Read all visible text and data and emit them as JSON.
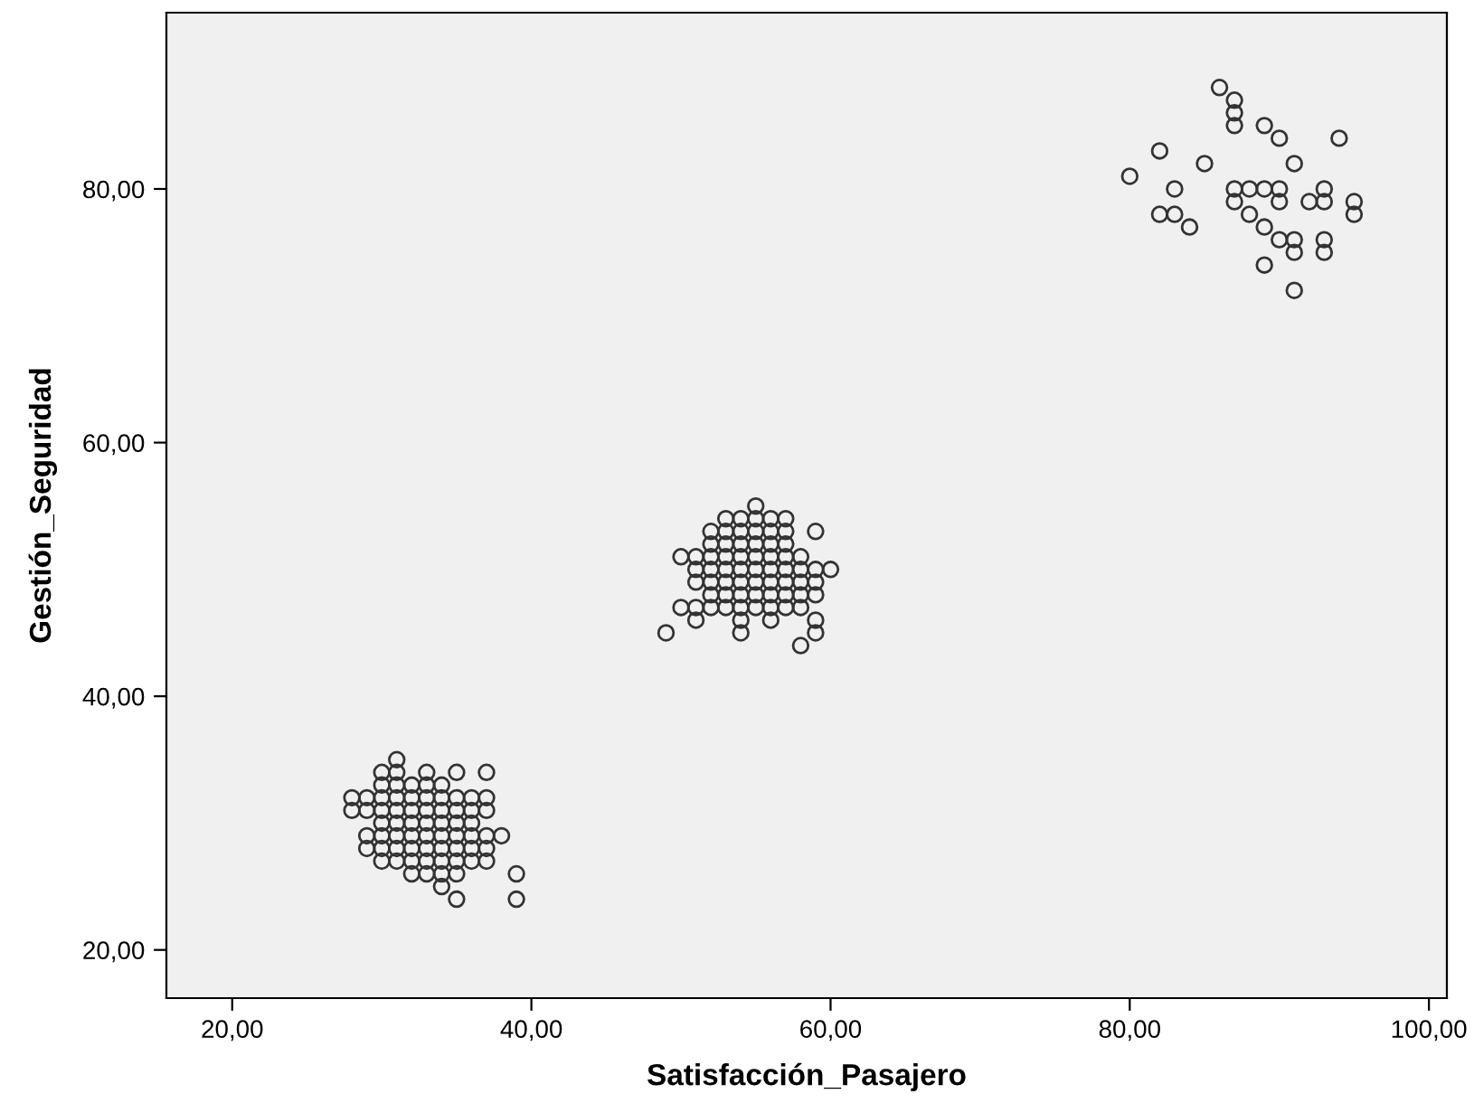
{
  "chart_data": {
    "type": "scatter",
    "xlabel": "Satisfacción_Pasajero",
    "ylabel": "Gestión_Seguridad",
    "xlim": [
      15.6,
      101.2
    ],
    "ylim": [
      16.2,
      93.9
    ],
    "xticks": [
      {
        "value": 20,
        "label": "20,00"
      },
      {
        "value": 40,
        "label": "40,00"
      },
      {
        "value": 60,
        "label": "60,00"
      },
      {
        "value": 80,
        "label": "80,00"
      },
      {
        "value": 100,
        "label": "100,00"
      }
    ],
    "yticks": [
      {
        "value": 20,
        "label": "20,00"
      },
      {
        "value": 40,
        "label": "40,00"
      },
      {
        "value": 60,
        "label": "60,00"
      },
      {
        "value": 80,
        "label": "80,00"
      }
    ],
    "marker": "circle",
    "grid": false,
    "legend": false,
    "series": [
      {
        "color": "#333333",
        "x": [
          31,
          30,
          31,
          33,
          35,
          37,
          30,
          31,
          32,
          33,
          34,
          28,
          29,
          30,
          31,
          32,
          33,
          34,
          35,
          36,
          37,
          28,
          29,
          30,
          31,
          32,
          33,
          34,
          35,
          36,
          37,
          30,
          31,
          32,
          33,
          34,
          35,
          36,
          29,
          30,
          31,
          32,
          33,
          34,
          35,
          36,
          37,
          38,
          29,
          30,
          31,
          32,
          33,
          34,
          35,
          36,
          37,
          30,
          31,
          32,
          33,
          34,
          35,
          36,
          37,
          32,
          33,
          34,
          35,
          39,
          34,
          35,
          39,
          55,
          53,
          54,
          55,
          56,
          57,
          52,
          53,
          54,
          55,
          56,
          57,
          59,
          52,
          53,
          54,
          55,
          56,
          57,
          50,
          51,
          52,
          53,
          54,
          55,
          56,
          57,
          58,
          51,
          52,
          53,
          54,
          55,
          56,
          57,
          58,
          59,
          60,
          51,
          52,
          53,
          54,
          55,
          56,
          57,
          58,
          59,
          52,
          53,
          54,
          55,
          56,
          57,
          58,
          59,
          50,
          51,
          52,
          53,
          54,
          55,
          56,
          57,
          58,
          51,
          54,
          56,
          59,
          49,
          54,
          59,
          58,
          86,
          87,
          87,
          87,
          89,
          90,
          94,
          82,
          85,
          91,
          80,
          83,
          87,
          88,
          89,
          90,
          87,
          90,
          92,
          93,
          93,
          95,
          95,
          82,
          83,
          84,
          88,
          89,
          90,
          91,
          91,
          93,
          93,
          89,
          91
        ],
        "values": [
          35,
          34,
          34,
          34,
          34,
          34,
          33,
          33,
          33,
          33,
          33,
          32,
          32,
          32,
          32,
          32,
          32,
          32,
          32,
          32,
          32,
          31,
          31,
          31,
          31,
          31,
          31,
          31,
          31,
          31,
          31,
          30,
          30,
          30,
          30,
          30,
          30,
          30,
          29,
          29,
          29,
          29,
          29,
          29,
          29,
          29,
          29,
          29,
          28,
          28,
          28,
          28,
          28,
          28,
          28,
          28,
          28,
          27,
          27,
          27,
          27,
          27,
          27,
          27,
          27,
          26,
          26,
          26,
          26,
          26,
          25,
          24,
          24,
          55,
          54,
          54,
          54,
          54,
          54,
          53,
          53,
          53,
          53,
          53,
          53,
          53,
          52,
          52,
          52,
          52,
          52,
          52,
          51,
          51,
          51,
          51,
          51,
          51,
          51,
          51,
          51,
          50,
          50,
          50,
          50,
          50,
          50,
          50,
          50,
          50,
          50,
          49,
          49,
          49,
          49,
          49,
          49,
          49,
          49,
          49,
          48,
          48,
          48,
          48,
          48,
          48,
          48,
          48,
          47,
          47,
          47,
          47,
          47,
          47,
          47,
          47,
          47,
          46,
          46,
          46,
          46,
          45,
          45,
          45,
          44,
          88,
          87,
          86,
          85,
          85,
          84,
          84,
          83,
          82,
          82,
          81,
          80,
          80,
          80,
          80,
          80,
          79,
          79,
          79,
          79,
          80,
          79,
          78,
          78,
          78,
          77,
          78,
          77,
          76,
          76,
          75,
          76,
          75,
          74,
          72
        ]
      }
    ]
  }
}
